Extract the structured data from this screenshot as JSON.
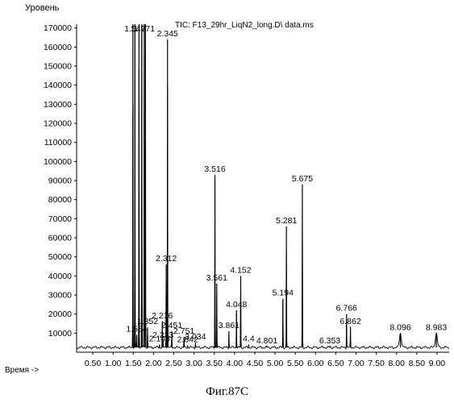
{
  "chart_data": {
    "type": "line",
    "title": "TIC: F13_29hr_LiqN2_long.D\\ data.ms",
    "ylabel": "Уровень",
    "xlabel": "Время ->",
    "ylim": [
      0,
      172000
    ],
    "xlim": [
      0.1,
      9.3
    ],
    "yticks": [
      10000,
      20000,
      30000,
      40000,
      50000,
      60000,
      70000,
      80000,
      90000,
      100000,
      110000,
      120000,
      130000,
      140000,
      150000,
      160000,
      170000
    ],
    "ytick_labels": [
      "10000",
      "20000",
      "30000",
      "40000",
      "50000",
      "60000",
      "70000",
      "80000",
      "90000",
      "100000",
      "110000",
      "120000",
      "130000",
      "140000",
      "150000",
      "160000",
      "170000"
    ],
    "xticks": [
      0.5,
      1.0,
      1.5,
      2.0,
      2.5,
      3.0,
      3.5,
      4.0,
      4.5,
      5.0,
      5.5,
      6.0,
      6.5,
      7.0,
      7.5,
      8.0,
      8.5,
      9.0
    ],
    "xtick_labels": [
      "0.50",
      "1.00",
      "1.50",
      "2.00",
      "2.50",
      "3.00",
      "3.50",
      "4.00",
      "4.50",
      "5.00",
      "5.50",
      "6.00",
      "6.50",
      "7.00",
      "7.50",
      "8.00",
      "8.50",
      "9.00"
    ],
    "baseline": 2500,
    "peaks": [
      {
        "rt": 1.49,
        "height": 172000,
        "label": "1"
      },
      {
        "rt": 1.54,
        "height": 172000,
        "label": "1.540"
      },
      {
        "rt": 1.584,
        "height": 9000,
        "label": "1.584"
      },
      {
        "rt": 1.64,
        "height": 172000,
        "label": ""
      },
      {
        "rt": 1.71,
        "height": 172000,
        "label": ""
      },
      {
        "rt": 1.771,
        "height": 172000,
        "label": "1.771"
      },
      {
        "rt": 1.8,
        "height": 172000,
        "label": ""
      },
      {
        "rt": 1.852,
        "height": 13000,
        "label": "1.852"
      },
      {
        "rt": 2.148,
        "height": 4000,
        "label": "2.148"
      },
      {
        "rt": 2.216,
        "height": 16000,
        "label": "2.216"
      },
      {
        "rt": 2.233,
        "height": 6000,
        "label": "2.233"
      },
      {
        "rt": 2.312,
        "height": 46000,
        "label": "2.312"
      },
      {
        "rt": 2.345,
        "height": 164000,
        "label": "2.345"
      },
      {
        "rt": 2.451,
        "height": 11000,
        "label": "2.451"
      },
      {
        "rt": 2.751,
        "height": 8000,
        "label": "2.751"
      },
      {
        "rt": 2.842,
        "height": 3500,
        "label": "2.842"
      },
      {
        "rt": 3.034,
        "height": 5000,
        "label": "3.034"
      },
      {
        "rt": 3.516,
        "height": 93000,
        "label": "3.516"
      },
      {
        "rt": 3.561,
        "height": 36000,
        "label": "3.561"
      },
      {
        "rt": 3.861,
        "height": 11000,
        "label": "3.861"
      },
      {
        "rt": 4.048,
        "height": 22000,
        "label": "4.048"
      },
      {
        "rt": 4.152,
        "height": 40000,
        "label": "4.152"
      },
      {
        "rt": 4.35,
        "height": 4000,
        "label": "4.4"
      },
      {
        "rt": 4.801,
        "height": 3000,
        "label": "4.801"
      },
      {
        "rt": 5.194,
        "height": 28000,
        "label": "5.194"
      },
      {
        "rt": 5.281,
        "height": 66000,
        "label": "5.281"
      },
      {
        "rt": 5.675,
        "height": 88000,
        "label": "5.675"
      },
      {
        "rt": 6.353,
        "height": 3000,
        "label": "6.353"
      },
      {
        "rt": 6.766,
        "height": 20000,
        "label": "6.766"
      },
      {
        "rt": 6.862,
        "height": 13000,
        "label": "6.862"
      },
      {
        "rt": 8.096,
        "height": 10000,
        "label": "8.096"
      },
      {
        "rt": 8.983,
        "height": 10000,
        "label": "8.983"
      }
    ]
  },
  "figure_caption": "Фиг.87C"
}
